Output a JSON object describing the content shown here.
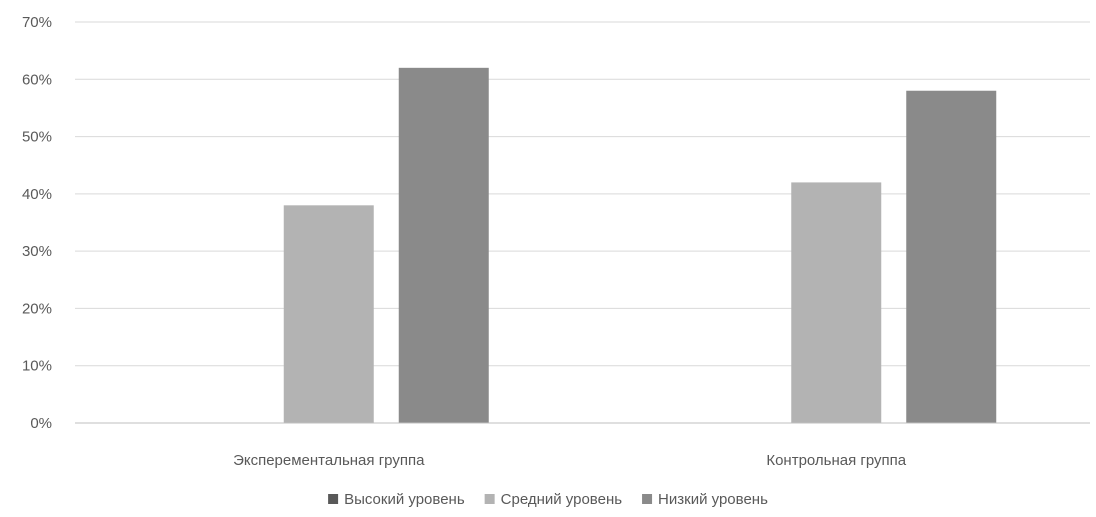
{
  "chart_data": {
    "type": "bar",
    "categories": [
      "Эксперементальная группа",
      "Контрольная группа"
    ],
    "series": [
      {
        "name": "Высокий уровень",
        "values": [
          0,
          0
        ],
        "color": "#595959"
      },
      {
        "name": "Средний уровень",
        "values": [
          38,
          42
        ],
        "color": "#b3b3b3"
      },
      {
        "name": "Низкий уровень",
        "values": [
          62,
          58
        ],
        "color": "#8a8a8a"
      }
    ],
    "ylim": [
      0,
      70
    ],
    "yticks": [
      0,
      10,
      20,
      30,
      40,
      50,
      60,
      70
    ],
    "ytick_labels": [
      "0%",
      "10%",
      "20%",
      "30%",
      "40%",
      "50%",
      "60%",
      "70%"
    ],
    "grid": true,
    "legend_position": "bottom",
    "gridline_color": "#d9d9d9",
    "axis_color": "#bfbfbf"
  }
}
